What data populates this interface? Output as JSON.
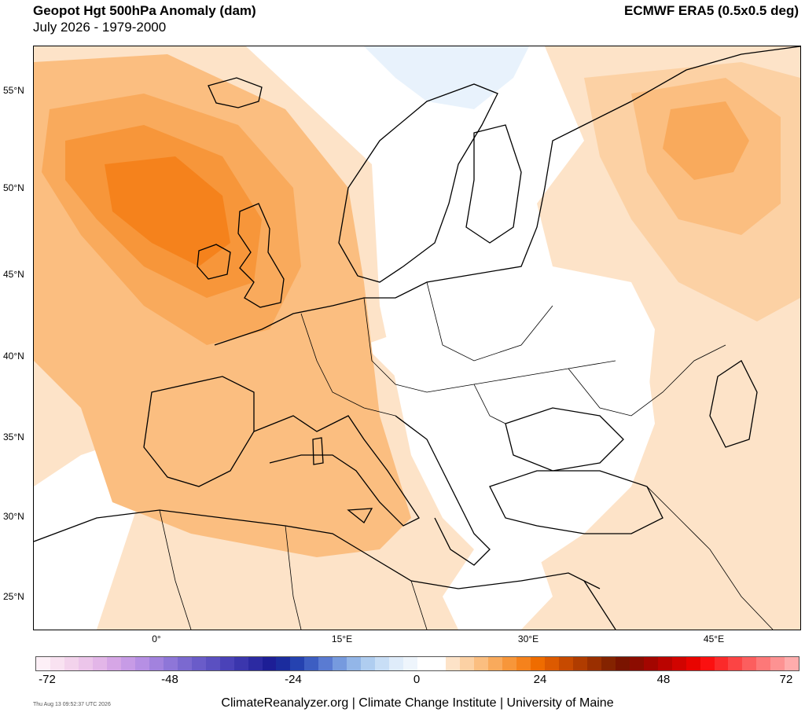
{
  "header": {
    "title": "Geopot Hgt 500hPa Anomaly (dam)",
    "subtitle": "July 2026 - 1979-2000",
    "source": "ECMWF ERA5 (0.5x0.5 deg)"
  },
  "axes": {
    "lat_labels": [
      "55°N",
      "50°N",
      "45°N",
      "40°N",
      "35°N",
      "30°N",
      "25°N"
    ],
    "lon_labels": [
      "0°",
      "15°E",
      "30°E",
      "45°E"
    ]
  },
  "legend": {
    "tick_labels": [
      "-72",
      "-48",
      "-24",
      "0",
      "24",
      "48",
      "72"
    ],
    "colors": [
      "#fdf0f7",
      "#f9e2f1",
      "#f3d3ec",
      "#ecc5ea",
      "#e3b6e8",
      "#d6a6e6",
      "#c79be6",
      "#b68fe4",
      "#a282de",
      "#8e76d8",
      "#7b69d0",
      "#6a5cc9",
      "#5b50c1",
      "#4a42b8",
      "#3b36ad",
      "#2c2aa2",
      "#1d1e96",
      "#1b2c9e",
      "#2542b0",
      "#3d5ec2",
      "#5a7bd2",
      "#769ade",
      "#93b6e8",
      "#afcdf0",
      "#c8def6",
      "#dfecfa",
      "#eef5fc",
      "#ffffff",
      "#ffffff",
      "#fde3c8",
      "#fcd1a4",
      "#fbbe80",
      "#f9aa5c",
      "#f7963a",
      "#f5821c",
      "#ef6c00",
      "#dd5a00",
      "#c74a00",
      "#b03c00",
      "#9a2f00",
      "#842300",
      "#7a1400",
      "#8c0c00",
      "#a30600",
      "#ba0400",
      "#d10400",
      "#e80400",
      "#fb1010",
      "#fb2a2a",
      "#fc4444",
      "#fc5e5e",
      "#fd7878",
      "#fd9292",
      "#feacac"
    ]
  },
  "footer": {
    "text": "ClimateReanalyzer.org | Climate Change Institute | University of Maine",
    "timestamp": "Thu Aug 13 09:52:37 UTC 2026"
  }
}
